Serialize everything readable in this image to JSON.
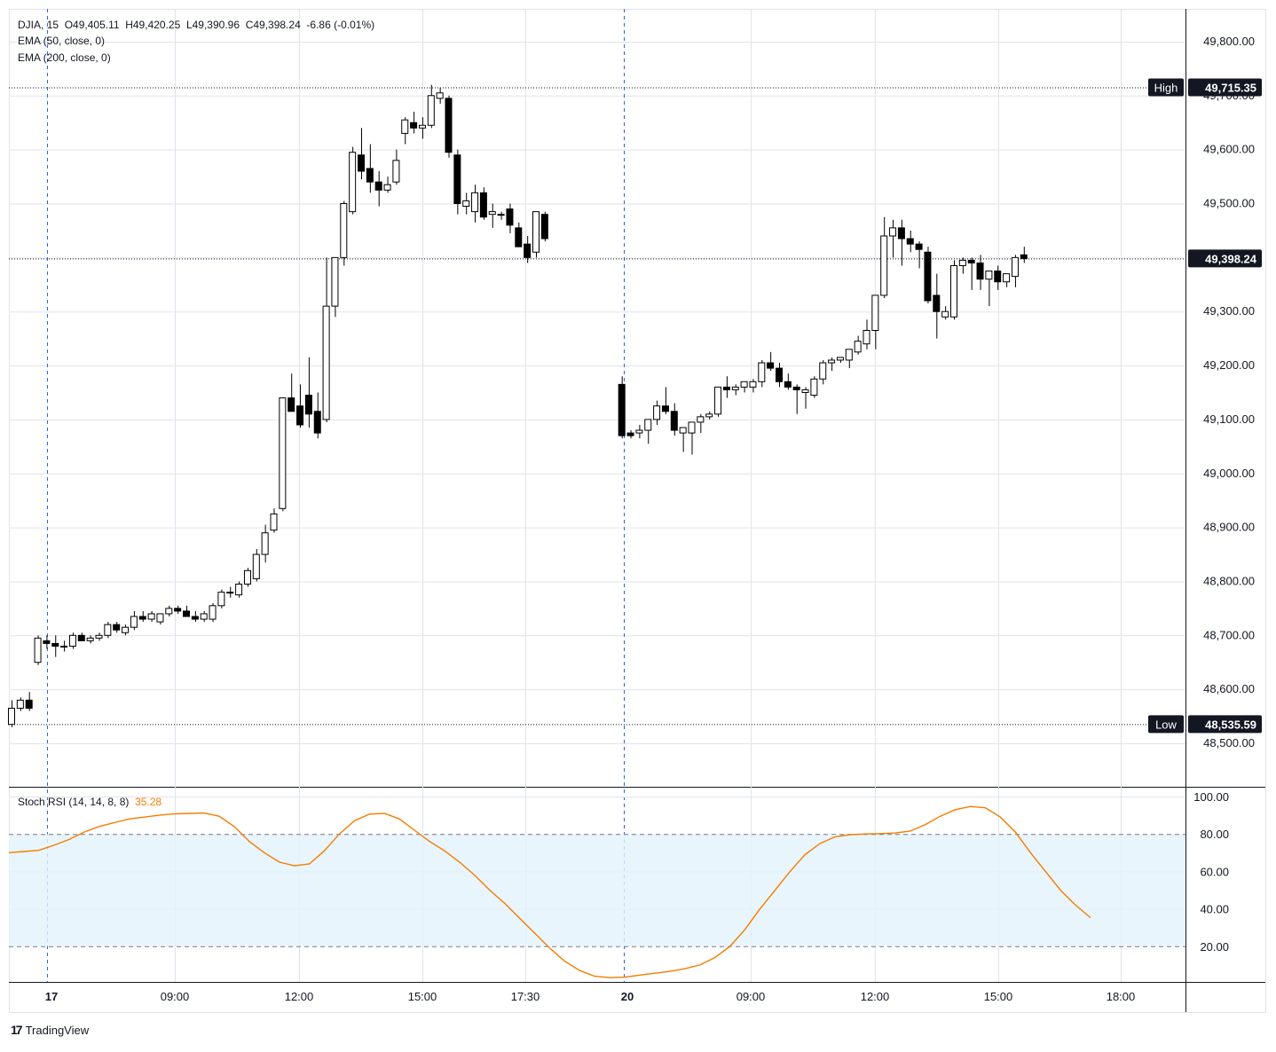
{
  "legend": {
    "symbol": "DJIA",
    "interval": "15",
    "open": "O49,405.11",
    "high": "H49,420.25",
    "low": "L49,390.96",
    "close": "C49,398.24",
    "change": "-6.86 (-0.01%)",
    "ema1": "EMA (50, close, 0)",
    "ema2": "EMA (200, close, 0)",
    "stoch_label": "Stoch RSI (14, 14, 8, 8)",
    "stoch_value": "35.28"
  },
  "badges": {
    "high_label": "High",
    "high_value": "49,715.35",
    "low_label": "Low",
    "low_value": "48,535.59",
    "last_value": "49,398.24"
  },
  "brand": "TradingView",
  "colors": {
    "up": "#ffffff",
    "down": "#000000",
    "stoch": "#f57c00",
    "band": "#e3f2fd"
  },
  "chart_data": [
    {
      "type": "candlestick",
      "symbol": "DJIA",
      "interval": "15",
      "ylim": [
        48450,
        49850
      ],
      "ytick_labels": [
        "49,800.00",
        "49,700.00",
        "49,600.00",
        "49,500.00",
        "49,400.00",
        "49,300.00",
        "49,200.00",
        "49,100.00",
        "49,000.00",
        "48,900.00",
        "48,800.00",
        "48,700.00",
        "48,600.00",
        "48,500.00"
      ],
      "yticks": [
        49800,
        49700,
        49600,
        49500,
        49400,
        49300,
        49200,
        49100,
        49000,
        48900,
        48800,
        48700,
        48600,
        48500
      ],
      "xtick_labels": [
        "17",
        "09:00",
        "12:00",
        "15:00",
        "17:30",
        "20",
        "09:00",
        "12:00",
        "15:00",
        "18:00"
      ],
      "high": 49715.35,
      "low": 48535.59,
      "last": 49398.24,
      "candles": [
        [
          48535,
          48580,
          48530,
          48565
        ],
        [
          48565,
          48585,
          48560,
          48580
        ],
        [
          48580,
          48595,
          48560,
          48565
        ],
        [
          48650,
          48700,
          48645,
          48695
        ],
        [
          48690,
          48700,
          48675,
          48685
        ],
        [
          48685,
          48700,
          48660,
          48680
        ],
        [
          48680,
          48690,
          48670,
          48680
        ],
        [
          48680,
          48705,
          48675,
          48700
        ],
        [
          48700,
          48705,
          48690,
          48690
        ],
        [
          48690,
          48700,
          48685,
          48695
        ],
        [
          48695,
          48705,
          48690,
          48700
        ],
        [
          48700,
          48725,
          48695,
          48720
        ],
        [
          48720,
          48725,
          48705,
          48710
        ],
        [
          48705,
          48720,
          48700,
          48715
        ],
        [
          48715,
          48745,
          48710,
          48735
        ],
        [
          48735,
          48745,
          48725,
          48730
        ],
        [
          48730,
          48745,
          48725,
          48740
        ],
        [
          48725,
          48740,
          48720,
          48740
        ],
        [
          48740,
          48755,
          48735,
          48750
        ],
        [
          48750,
          48755,
          48740,
          48745
        ],
        [
          48745,
          48755,
          48735,
          48735
        ],
        [
          48735,
          48745,
          48725,
          48730
        ],
        [
          48730,
          48745,
          48725,
          48740
        ],
        [
          48730,
          48760,
          48725,
          48755
        ],
        [
          48755,
          48785,
          48750,
          48780
        ],
        [
          48780,
          48790,
          48770,
          48780
        ],
        [
          48775,
          48800,
          48770,
          48795
        ],
        [
          48795,
          48825,
          48790,
          48820
        ],
        [
          48805,
          48860,
          48800,
          48850
        ],
        [
          48850,
          48905,
          48835,
          48890
        ],
        [
          48895,
          48935,
          48890,
          48925
        ],
        [
          48935,
          49140,
          48930,
          49140
        ],
        [
          49140,
          49185,
          49125,
          49115
        ],
        [
          49125,
          49165,
          49085,
          49090
        ],
        [
          49145,
          49215,
          49085,
          49110
        ],
        [
          49115,
          49150,
          49065,
          49075
        ],
        [
          49100,
          49400,
          49095,
          49310
        ],
        [
          49310,
          49400,
          49290,
          49400
        ],
        [
          49400,
          49505,
          49385,
          49500
        ],
        [
          49485,
          49605,
          49480,
          49595
        ],
        [
          49590,
          49640,
          49545,
          49560
        ],
        [
          49565,
          49610,
          49520,
          49540
        ],
        [
          49540,
          49560,
          49495,
          49525
        ],
        [
          49525,
          49550,
          49520,
          49535
        ],
        [
          49540,
          49600,
          49535,
          49580
        ],
        [
          49630,
          49660,
          49610,
          49655
        ],
        [
          49650,
          49670,
          49630,
          49640
        ],
        [
          49640,
          49660,
          49620,
          49645
        ],
        [
          49645,
          49720,
          49640,
          49700
        ],
        [
          49695,
          49715,
          49685,
          49705
        ],
        [
          49695,
          49700,
          49585,
          49595
        ],
        [
          49590,
          49600,
          49480,
          49500
        ],
        [
          49495,
          49520,
          49480,
          49505
        ],
        [
          49485,
          49535,
          49465,
          49520
        ],
        [
          49520,
          49530,
          49470,
          49475
        ],
        [
          49480,
          49500,
          49455,
          49485
        ],
        [
          49480,
          49485,
          49470,
          49480
        ],
        [
          49490,
          49500,
          49445,
          49460
        ],
        [
          49455,
          49465,
          49420,
          49420
        ],
        [
          49425,
          49440,
          49390,
          49400
        ],
        [
          49410,
          49485,
          49400,
          49485
        ],
        [
          49480,
          49485,
          49430,
          49435
        ],
        [
          49165,
          49180,
          49065,
          49070
        ],
        [
          49075,
          49080,
          49065,
          49070
        ],
        [
          49075,
          49090,
          49065,
          49080
        ],
        [
          49080,
          49100,
          49055,
          49100
        ],
        [
          49100,
          49135,
          49090,
          49125
        ],
        [
          49125,
          49160,
          49110,
          49115
        ],
        [
          49115,
          49130,
          49070,
          49080
        ],
        [
          49075,
          49085,
          49040,
          49085
        ],
        [
          49075,
          49095,
          49035,
          49095
        ],
        [
          49095,
          49110,
          49075,
          49105
        ],
        [
          49105,
          49115,
          49100,
          49110
        ],
        [
          49110,
          49160,
          49105,
          49160
        ],
        [
          49160,
          49180,
          49140,
          49155
        ],
        [
          49155,
          49165,
          49145,
          49160
        ],
        [
          49160,
          49165,
          49150,
          49170
        ],
        [
          49160,
          49175,
          49150,
          49170
        ],
        [
          49170,
          49210,
          49160,
          49205
        ],
        [
          49205,
          49225,
          49190,
          49195
        ],
        [
          49195,
          49205,
          49160,
          49170
        ],
        [
          49170,
          49185,
          49155,
          49160
        ],
        [
          49160,
          49165,
          49110,
          49155
        ],
        [
          49150,
          49160,
          49120,
          49155
        ],
        [
          49145,
          49180,
          49140,
          49175
        ],
        [
          49175,
          49210,
          49165,
          49205
        ],
        [
          49205,
          49215,
          49190,
          49210
        ],
        [
          49210,
          49215,
          49205,
          49215
        ],
        [
          49210,
          49230,
          49195,
          49230
        ],
        [
          49225,
          49255,
          49220,
          49245
        ],
        [
          49240,
          49285,
          49230,
          49265
        ],
        [
          49265,
          49330,
          49230,
          49330
        ],
        [
          49330,
          49475,
          49325,
          49440
        ],
        [
          49440,
          49470,
          49400,
          49455
        ],
        [
          49455,
          49470,
          49385,
          49435
        ],
        [
          49435,
          49450,
          49410,
          49425
        ],
        [
          49425,
          49430,
          49380,
          49415
        ],
        [
          49410,
          49420,
          49315,
          49320
        ],
        [
          49330,
          49370,
          49250,
          49300
        ],
        [
          49290,
          49310,
          49285,
          49300
        ],
        [
          49290,
          49395,
          49285,
          49385
        ],
        [
          49385,
          49400,
          49370,
          49395
        ],
        [
          49395,
          49400,
          49340,
          49390
        ],
        [
          49390,
          49405,
          49340,
          49360
        ],
        [
          49360,
          49375,
          49310,
          49375
        ],
        [
          49375,
          49385,
          49340,
          49355
        ],
        [
          49355,
          49370,
          49345,
          49370
        ],
        [
          49365,
          49405,
          49345,
          49400
        ],
        [
          49405,
          49420,
          49390,
          49398
        ]
      ]
    },
    {
      "type": "line",
      "name": "Stoch RSI (14, 14, 8, 8)",
      "ylim": [
        0,
        100
      ],
      "yticks": [
        100,
        80,
        60,
        40,
        20
      ],
      "ytick_labels": [
        "100.00",
        "80.00",
        "60.00",
        "40.00",
        "20.00"
      ],
      "band": [
        20,
        80
      ],
      "last": 35.28,
      "values": [
        70,
        70.6,
        71.3,
        74,
        77,
        81,
        84,
        86,
        88,
        89,
        90,
        90.7,
        91,
        91.2,
        89.5,
        84,
        76,
        70,
        65,
        63,
        64,
        71,
        80,
        87,
        90.6,
        91,
        88,
        82,
        76,
        71,
        65,
        58,
        50,
        43,
        35,
        27,
        19,
        12,
        7,
        4,
        3.2,
        3.5,
        4.6,
        5.6,
        6.6,
        8,
        10,
        14,
        20,
        29,
        40,
        50,
        60,
        69,
        75,
        78.5,
        79.6,
        80,
        80.2,
        80.5,
        81.5,
        85,
        89.5,
        93,
        94.7,
        94,
        89,
        81,
        70,
        60,
        50,
        42,
        35.28
      ]
    }
  ]
}
